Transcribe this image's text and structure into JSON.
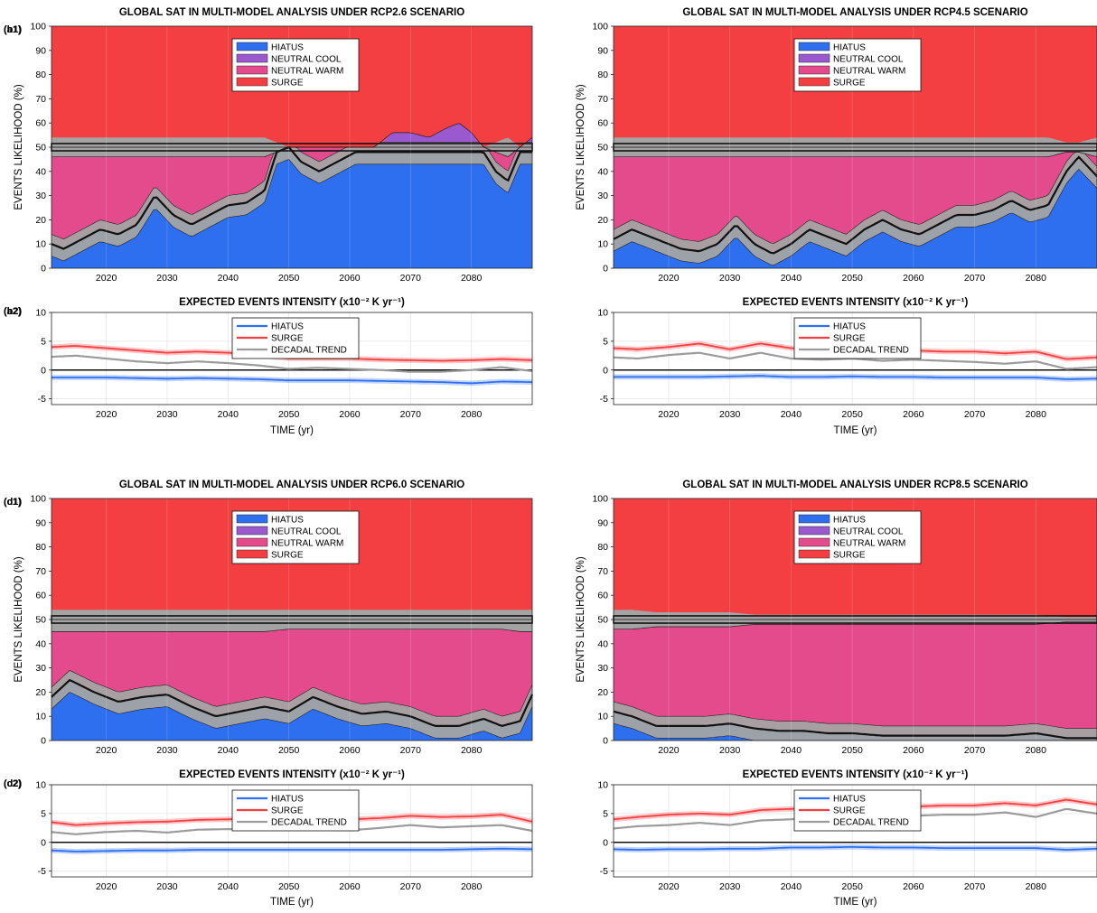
{
  "figure": {
    "x_ticks": [
      2020,
      2030,
      2040,
      2050,
      2060,
      2070,
      2080
    ],
    "likelihood_axis": {
      "label": "EVENTS LIKELIHOOD (%)",
      "ylim": [
        0,
        100
      ],
      "xlim": [
        2011,
        2090
      ],
      "yticks": [
        0,
        10,
        20,
        30,
        40,
        50,
        60,
        70,
        80,
        90,
        100
      ]
    },
    "intensity_axis": {
      "title": "EXPECTED EVENTS INTENSITY (x10⁻² K yr⁻¹)",
      "ylim": [
        -6,
        10
      ],
      "xlim": [
        2011,
        2090
      ],
      "yticks": [
        -5,
        0,
        5,
        10
      ],
      "xlabel": "TIME (yr)"
    },
    "colors": {
      "hiatus": "#2e6fef",
      "neutral_cool": "#9b59d0",
      "neutral_warm": "#e34b8c",
      "surge": "#f43f42",
      "band": "#a3a3a3",
      "decadal": "#9b9b9b"
    },
    "likelihood_legend": [
      "HIATUS",
      "NEUTRAL COOL",
      "NEUTRAL WARM",
      "SURGE"
    ],
    "intensity_legend": [
      "HIATUS",
      "SURGE",
      "DECADAL TREND"
    ]
  },
  "chart_data": [
    {
      "type": "area",
      "panel": "a1",
      "title": "GLOBAL SAT IN MULTI-MODEL ANALYSIS UNDER RCP2.6 SCENARIO",
      "ylabel": "EVENTS LIKELIHOOD (%)",
      "xlim": [
        2011,
        2090
      ],
      "ylim": [
        0,
        100
      ],
      "x": [
        2011,
        2013,
        2016,
        2019,
        2022,
        2025,
        2028,
        2031,
        2034,
        2037,
        2040,
        2043,
        2046,
        2048,
        2050,
        2052,
        2055,
        2058,
        2061,
        2064,
        2067,
        2070,
        2073,
        2076,
        2078,
        2080,
        2082,
        2084,
        2086,
        2088,
        2090
      ],
      "hiatus": [
        10,
        8,
        12,
        16,
        14,
        18,
        30,
        22,
        18,
        22,
        26,
        27,
        32,
        48,
        50,
        44,
        40,
        44,
        48,
        48,
        48,
        48,
        48,
        48,
        48,
        48,
        48,
        40,
        36,
        48,
        48
      ],
      "neutral_cool": [
        0,
        0,
        0,
        0,
        0,
        0,
        0,
        0,
        0,
        0,
        0,
        0,
        0,
        0,
        0,
        0,
        0,
        0,
        0,
        0,
        8,
        8,
        6,
        10,
        12,
        8,
        0,
        0,
        0,
        2,
        6
      ],
      "neutral_warm": [
        36,
        38,
        34,
        30,
        32,
        28,
        16,
        24,
        28,
        24,
        20,
        19,
        14,
        0,
        0,
        6,
        10,
        6,
        2,
        2,
        0,
        0,
        0,
        0,
        0,
        0,
        2,
        8,
        10,
        0,
        0
      ],
      "surge_from_top": [
        54,
        54,
        54,
        54,
        54,
        54,
        54,
        54,
        54,
        54,
        54,
        54,
        54,
        52,
        50,
        50,
        50,
        50,
        50,
        50,
        44,
        44,
        46,
        42,
        40,
        44,
        50,
        52,
        54,
        50,
        46
      ]
    },
    {
      "type": "line",
      "panel": "a2",
      "title": "EXPECTED EVENTS INTENSITY (x10⁻² K yr⁻¹)",
      "xlabel": "TIME (yr)",
      "xlim": [
        2011,
        2090
      ],
      "ylim": [
        -6,
        10
      ],
      "x": [
        2011,
        2015,
        2020,
        2025,
        2030,
        2035,
        2040,
        2045,
        2050,
        2055,
        2060,
        2065,
        2070,
        2075,
        2080,
        2085,
        2090
      ],
      "series": [
        {
          "name": "HIATUS",
          "values": [
            -1.3,
            -1.3,
            -1.3,
            -1.4,
            -1.5,
            -1.4,
            -1.5,
            -1.6,
            -1.8,
            -1.8,
            -1.8,
            -1.9,
            -2.0,
            -2.1,
            -2.3,
            -2.0,
            -2.1
          ]
        },
        {
          "name": "SURGE",
          "values": [
            4.0,
            4.2,
            3.8,
            3.4,
            3.0,
            3.2,
            3.0,
            2.6,
            2.0,
            2.0,
            2.0,
            1.8,
            1.7,
            1.6,
            1.7,
            1.9,
            1.7
          ]
        },
        {
          "name": "DECADAL TREND",
          "values": [
            2.3,
            2.5,
            2.0,
            1.5,
            1.2,
            1.5,
            1.2,
            0.8,
            0.2,
            0.4,
            0.2,
            0.0,
            -0.3,
            -0.3,
            0.0,
            0.5,
            -0.2
          ]
        }
      ]
    },
    {
      "type": "area",
      "panel": "b1",
      "title": "GLOBAL SAT IN MULTI-MODEL ANALYSIS UNDER RCP4.5 SCENARIO",
      "ylabel": "EVENTS LIKELIHOOD (%)",
      "xlim": [
        2011,
        2090
      ],
      "ylim": [
        0,
        100
      ],
      "x": [
        2011,
        2014,
        2018,
        2022,
        2025,
        2028,
        2031,
        2034,
        2037,
        2040,
        2043,
        2046,
        2049,
        2052,
        2055,
        2058,
        2061,
        2064,
        2067,
        2070,
        2073,
        2076,
        2079,
        2082,
        2085,
        2087,
        2090
      ],
      "hiatus": [
        12,
        16,
        12,
        8,
        7,
        10,
        18,
        10,
        6,
        10,
        16,
        13,
        10,
        16,
        20,
        16,
        14,
        18,
        22,
        22,
        24,
        28,
        24,
        26,
        40,
        46,
        38
      ],
      "neutral_cool": [
        0,
        0,
        0,
        0,
        0,
        0,
        0,
        0,
        0,
        0,
        0,
        0,
        0,
        0,
        0,
        0,
        0,
        0,
        0,
        0,
        0,
        0,
        0,
        0,
        0,
        0,
        0
      ],
      "neutral_warm": [
        34,
        30,
        34,
        38,
        39,
        36,
        28,
        36,
        40,
        36,
        30,
        33,
        36,
        30,
        26,
        30,
        32,
        28,
        24,
        24,
        22,
        18,
        22,
        20,
        8,
        2,
        8
      ],
      "surge_from_top": [
        54,
        54,
        54,
        54,
        54,
        54,
        54,
        54,
        54,
        54,
        54,
        54,
        54,
        54,
        54,
        54,
        54,
        54,
        54,
        54,
        54,
        54,
        54,
        54,
        52,
        52,
        54
      ]
    },
    {
      "type": "line",
      "panel": "b2",
      "title": "EXPECTED EVENTS INTENSITY (x10⁻² K yr⁻¹)",
      "xlabel": "TIME (yr)",
      "xlim": [
        2011,
        2090
      ],
      "ylim": [
        -6,
        10
      ],
      "x": [
        2011,
        2015,
        2020,
        2025,
        2030,
        2035,
        2040,
        2045,
        2050,
        2055,
        2060,
        2065,
        2070,
        2075,
        2080,
        2085,
        2090
      ],
      "series": [
        {
          "name": "HIATUS",
          "values": [
            -1.2,
            -1.2,
            -1.2,
            -1.2,
            -1.1,
            -1.0,
            -1.2,
            -1.2,
            -1.1,
            -1.2,
            -1.2,
            -1.3,
            -1.3,
            -1.3,
            -1.3,
            -1.6,
            -1.5
          ]
        },
        {
          "name": "SURGE",
          "values": [
            3.8,
            3.6,
            4.0,
            4.6,
            3.6,
            4.6,
            3.8,
            3.6,
            3.8,
            3.6,
            3.4,
            3.2,
            3.2,
            2.9,
            3.2,
            1.9,
            2.2
          ]
        },
        {
          "name": "DECADAL TREND",
          "values": [
            2.2,
            2.0,
            2.6,
            3.0,
            2.0,
            3.0,
            2.0,
            1.8,
            2.0,
            1.6,
            1.8,
            1.6,
            1.4,
            1.1,
            1.5,
            0.2,
            0.5
          ]
        }
      ]
    },
    {
      "type": "area",
      "panel": "c1",
      "title": "GLOBAL SAT IN MULTI-MODEL ANALYSIS UNDER RCP6.0 SCENARIO",
      "ylabel": "EVENTS LIKELIHOOD (%)",
      "xlim": [
        2011,
        2090
      ],
      "ylim": [
        0,
        100
      ],
      "x": [
        2011,
        2014,
        2018,
        2022,
        2026,
        2030,
        2034,
        2038,
        2042,
        2046,
        2050,
        2054,
        2058,
        2062,
        2066,
        2070,
        2074,
        2078,
        2082,
        2085,
        2088,
        2090
      ],
      "hiatus": [
        18,
        25,
        20,
        16,
        18,
        19,
        14,
        10,
        12,
        14,
        12,
        18,
        14,
        11,
        12,
        10,
        6,
        6,
        9,
        6,
        8,
        19
      ],
      "neutral_cool": [
        0,
        0,
        0,
        0,
        0,
        0,
        0,
        0,
        0,
        0,
        0,
        0,
        0,
        0,
        0,
        0,
        0,
        0,
        0,
        0,
        0,
        0
      ],
      "neutral_warm": [
        27,
        20,
        25,
        29,
        27,
        26,
        31,
        35,
        33,
        31,
        34,
        28,
        32,
        35,
        34,
        36,
        40,
        40,
        37,
        40,
        37,
        26
      ],
      "surge_from_top": [
        54,
        54,
        54,
        54,
        54,
        54,
        54,
        54,
        54,
        54,
        54,
        54,
        54,
        54,
        54,
        54,
        54,
        54,
        54,
        54,
        54,
        54
      ]
    },
    {
      "type": "line",
      "panel": "c2",
      "title": "EXPECTED EVENTS INTENSITY (x10⁻² K yr⁻¹)",
      "xlabel": "TIME (yr)",
      "xlim": [
        2011,
        2090
      ],
      "ylim": [
        -6,
        10
      ],
      "x": [
        2011,
        2015,
        2020,
        2025,
        2030,
        2035,
        2040,
        2045,
        2050,
        2055,
        2060,
        2065,
        2070,
        2075,
        2080,
        2085,
        2090
      ],
      "series": [
        {
          "name": "HIATUS",
          "values": [
            -1.4,
            -1.6,
            -1.5,
            -1.4,
            -1.4,
            -1.3,
            -1.3,
            -1.3,
            -1.3,
            -1.3,
            -1.3,
            -1.3,
            -1.3,
            -1.3,
            -1.2,
            -1.1,
            -1.2
          ]
        },
        {
          "name": "SURGE",
          "values": [
            3.5,
            3.0,
            3.3,
            3.5,
            3.6,
            3.9,
            4.0,
            4.2,
            4.2,
            4.3,
            4.0,
            4.2,
            4.6,
            4.4,
            4.5,
            4.8,
            3.6
          ]
        },
        {
          "name": "DECADAL TREND",
          "values": [
            1.8,
            1.4,
            1.8,
            2.0,
            1.7,
            2.2,
            2.3,
            2.2,
            2.4,
            2.2,
            2.1,
            2.5,
            3.0,
            2.6,
            2.8,
            3.0,
            2.0
          ]
        }
      ]
    },
    {
      "type": "area",
      "panel": "d1",
      "title": "GLOBAL SAT IN MULTI-MODEL ANALYSIS UNDER RCP8.5 SCENARIO",
      "ylabel": "EVENTS LIKELIHOOD (%)",
      "xlim": [
        2011,
        2090
      ],
      "ylim": [
        0,
        100
      ],
      "x": [
        2011,
        2014,
        2018,
        2022,
        2026,
        2030,
        2034,
        2038,
        2042,
        2046,
        2050,
        2055,
        2060,
        2065,
        2070,
        2075,
        2080,
        2085,
        2088,
        2090
      ],
      "hiatus": [
        12,
        10,
        6,
        6,
        6,
        7,
        5,
        4,
        4,
        3,
        3,
        2,
        2,
        2,
        2,
        2,
        3,
        1,
        1,
        1
      ],
      "neutral_cool": [
        0,
        0,
        0,
        0,
        0,
        0,
        0,
        0,
        0,
        0,
        0,
        0,
        0,
        0,
        0,
        0,
        0,
        0,
        0,
        0
      ],
      "neutral_warm": [
        34,
        36,
        41,
        41,
        41,
        40,
        43,
        44,
        44,
        45,
        45,
        46,
        46,
        46,
        46,
        46,
        45,
        48,
        48,
        48
      ],
      "surge_from_top": [
        54,
        54,
        53,
        53,
        53,
        53,
        52,
        52,
        52,
        52,
        52,
        52,
        52,
        52,
        52,
        52,
        52,
        51,
        51,
        51
      ]
    },
    {
      "type": "line",
      "panel": "d2",
      "title": "EXPECTED EVENTS INTENSITY (x10⁻² K yr⁻¹)",
      "xlabel": "TIME (yr)",
      "xlim": [
        2011,
        2090
      ],
      "ylim": [
        -6,
        10
      ],
      "x": [
        2011,
        2015,
        2020,
        2025,
        2030,
        2035,
        2040,
        2045,
        2050,
        2055,
        2060,
        2065,
        2070,
        2075,
        2080,
        2085,
        2090
      ],
      "series": [
        {
          "name": "HIATUS",
          "values": [
            -1.2,
            -1.3,
            -1.2,
            -1.2,
            -1.1,
            -1.1,
            -0.9,
            -0.9,
            -0.8,
            -0.9,
            -0.9,
            -1.0,
            -1.0,
            -1.0,
            -1.0,
            -1.3,
            -1.1
          ]
        },
        {
          "name": "SURGE",
          "values": [
            4.0,
            4.4,
            4.8,
            5.0,
            4.8,
            5.6,
            5.8,
            6.0,
            6.0,
            6.4,
            6.2,
            6.4,
            6.4,
            6.8,
            6.4,
            7.4,
            6.6
          ]
        },
        {
          "name": "DECADAL TREND",
          "values": [
            2.4,
            2.8,
            3.0,
            3.4,
            3.0,
            3.8,
            4.0,
            4.4,
            4.4,
            4.8,
            4.6,
            4.8,
            4.8,
            5.2,
            4.4,
            5.8,
            5.0
          ]
        }
      ]
    }
  ]
}
